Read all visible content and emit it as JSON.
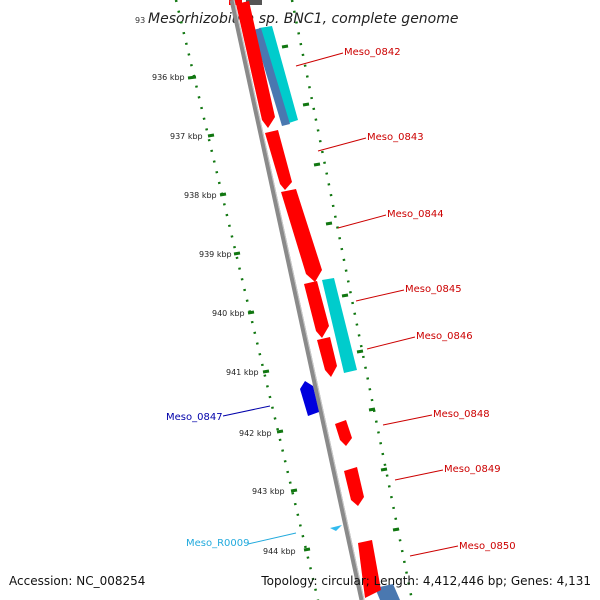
{
  "title": {
    "prefix": "93",
    "text": "Mesorhizobium sp. BNC1, complete genome"
  },
  "colors": {
    "backbone": "#8a8a8a",
    "forward_gene": "#ff0000",
    "reverse_gene": "#0000dd",
    "other_feature": "#00cccc",
    "rna_feature": "#33bbee",
    "tick": "#117711",
    "label_red": "#cc0000",
    "label_blue": "#0000aa",
    "label_cyan": "#22aadd"
  },
  "ticks": [
    "936 kbp",
    "937 kbp",
    "938 kbp",
    "939 kbp",
    "940 kbp",
    "941 kbp",
    "942 kbp",
    "943 kbp",
    "944 kbp"
  ],
  "genes": [
    {
      "id": "Meso_0842",
      "strand": "forward",
      "label_color": "label_red"
    },
    {
      "id": "Meso_0843",
      "strand": "forward",
      "label_color": "label_red"
    },
    {
      "id": "Meso_0844",
      "strand": "forward",
      "label_color": "label_red"
    },
    {
      "id": "Meso_0845",
      "strand": "forward",
      "label_color": "label_red"
    },
    {
      "id": "Meso_0846",
      "strand": "forward",
      "label_color": "label_red"
    },
    {
      "id": "Meso_0847",
      "strand": "reverse",
      "label_color": "label_blue"
    },
    {
      "id": "Meso_0848",
      "strand": "forward",
      "label_color": "label_red"
    },
    {
      "id": "Meso_0849",
      "strand": "forward",
      "label_color": "label_red"
    },
    {
      "id": "Meso_R0009",
      "strand": "reverse",
      "label_color": "label_cyan"
    },
    {
      "id": "Meso_0850",
      "strand": "forward",
      "label_color": "label_red"
    }
  ],
  "footer": {
    "accession": "Accession: NC_008254",
    "summary": "Topology: circular; Length: 4,412,446 bp; Genes: 4,131"
  }
}
